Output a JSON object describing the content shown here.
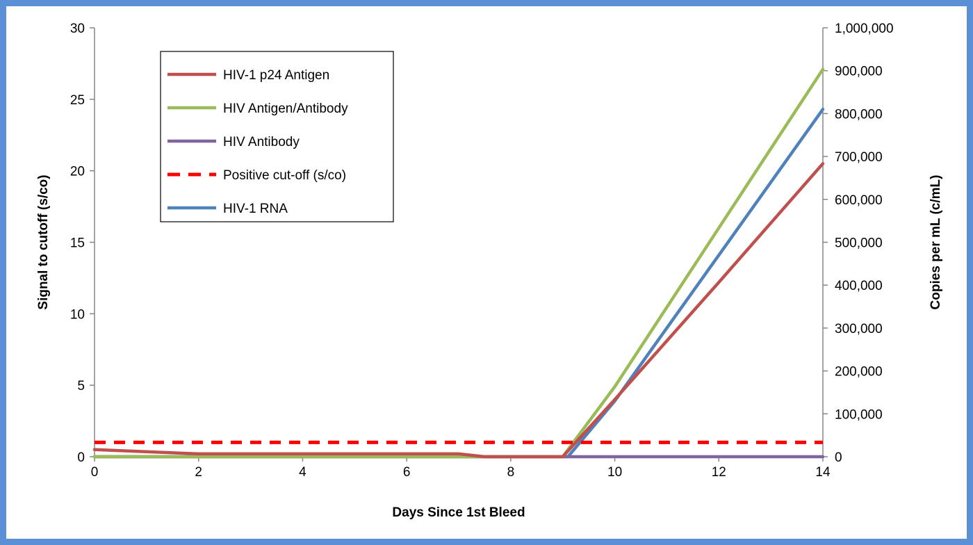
{
  "chart_data": {
    "type": "line",
    "xlabel": "Days Since 1st Bleed",
    "ylabel": "Signal to cutoff (s/co)",
    "y2label": "Copies per mL (c/mL)",
    "xlim": [
      0,
      14
    ],
    "ylim": [
      0,
      30
    ],
    "y2lim": [
      0,
      1000000
    ],
    "x_ticks": [
      0,
      2,
      4,
      6,
      8,
      10,
      12,
      14
    ],
    "y_ticks": [
      0,
      5,
      10,
      15,
      20,
      25,
      30
    ],
    "y2_ticks": [
      0,
      100000,
      200000,
      300000,
      400000,
      500000,
      600000,
      700000,
      800000,
      900000,
      1000000
    ],
    "x_tick_labels": [
      "0",
      "2",
      "4",
      "6",
      "8",
      "10",
      "12",
      "14"
    ],
    "y_tick_labels": [
      "0",
      "5",
      "10",
      "15",
      "20",
      "25",
      "30"
    ],
    "y2_tick_labels": [
      "0",
      "100,000",
      "200,000",
      "300,000",
      "400,000",
      "500,000",
      "600,000",
      "700,000",
      "800,000",
      "900,000",
      "1,000,000"
    ],
    "grid": false,
    "legend": "top-left",
    "series": [
      {
        "name": "HIV-1 p24 Antigen",
        "axis": "left",
        "color": "#c0504d",
        "dash": "solid",
        "x": [
          0,
          2,
          4,
          6,
          7,
          7.5,
          8,
          9,
          10,
          12,
          14
        ],
        "y": [
          0.5,
          0.2,
          0.2,
          0.2,
          0.2,
          0,
          0,
          0,
          4.0,
          12.2,
          20.5
        ]
      },
      {
        "name": "HIV Antigen/Antibody",
        "axis": "left",
        "color": "#9bbb59",
        "dash": "solid",
        "x": [
          0,
          2,
          4,
          6,
          8,
          9,
          10,
          12,
          14
        ],
        "y": [
          0,
          0,
          0,
          0,
          0,
          0,
          4.9,
          16.0,
          27.1
        ]
      },
      {
        "name": "HIV Antibody",
        "axis": "left",
        "color": "#8064a2",
        "dash": "solid",
        "x": [
          0,
          2,
          4,
          6,
          8,
          10,
          12,
          14
        ],
        "y": [
          0,
          0,
          0,
          0,
          0,
          0,
          0,
          0
        ]
      },
      {
        "name": "Positive cut-off (s/co)",
        "axis": "left",
        "color": "#ff0000",
        "dash": "dashed",
        "x": [
          0,
          14
        ],
        "y": [
          1,
          1
        ]
      },
      {
        "name": "HIV-1 RNA",
        "axis": "right",
        "color": "#4f81bd",
        "dash": "solid",
        "x": [
          0,
          2,
          4,
          6,
          8,
          9.1,
          10,
          12,
          14
        ],
        "y": [
          0,
          0,
          0,
          0,
          0,
          0,
          130000,
          470000,
          810000
        ]
      }
    ]
  }
}
